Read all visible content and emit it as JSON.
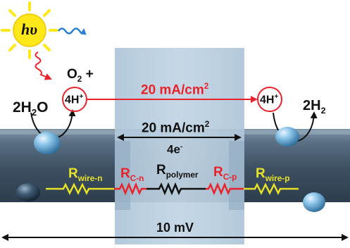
{
  "colors": {
    "red": "#e8232b",
    "yellow": "#e8e22a",
    "black": "#111111",
    "sun": "#ffe81a",
    "membrane": "#b9cfe0",
    "wire": "#3f5467"
  },
  "icons": {
    "sun": "sun-icon",
    "photon_wave": "wavy-arrow-icon"
  },
  "photon": {
    "symbol": "hυ"
  },
  "left_side": {
    "reactant_coef": "2H",
    "reactant_sub": "2",
    "reactant_end": "O",
    "product": "O",
    "product_sub": "2",
    "product_plus": " +",
    "ion": "4H",
    "ion_sup": "+"
  },
  "right_side": {
    "ion": "4H",
    "ion_sup": "+",
    "product": "2H",
    "product_sub": "2"
  },
  "top_current": {
    "value": "20 mA/cm",
    "exp": "2"
  },
  "mid_current": {
    "value": "20 mA/cm",
    "exp": "2"
  },
  "electrons": {
    "value": "4e",
    "sup": "-"
  },
  "resistors": {
    "wire_n": {
      "base": "R",
      "sub": "wire-n"
    },
    "c_n": {
      "base": "R",
      "sub": "C-n"
    },
    "polymer": {
      "base": "R",
      "sub": "polymer"
    },
    "c_p": {
      "base": "R",
      "sub": "C-p"
    },
    "wire_p": {
      "base": "R",
      "sub": "wire-p"
    }
  },
  "voltage": {
    "value": "10 mV"
  }
}
